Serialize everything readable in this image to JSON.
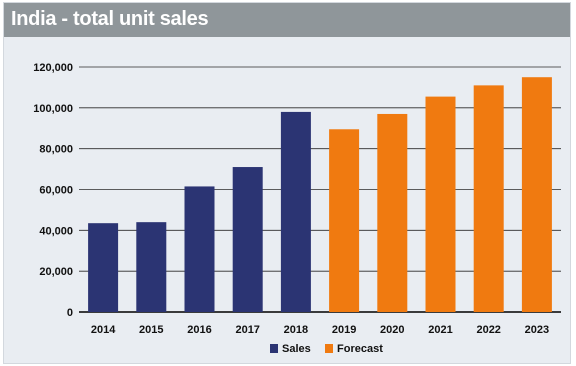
{
  "chart_data": {
    "type": "bar",
    "title": "India - total unit sales",
    "categories": [
      "2014",
      "2015",
      "2016",
      "2017",
      "2018",
      "2019",
      "2020",
      "2021",
      "2022",
      "2023"
    ],
    "series": [
      {
        "name": "Sales",
        "color": "#2b3473",
        "values": [
          43500,
          44000,
          61500,
          71000,
          98000,
          null,
          null,
          null,
          null,
          null
        ]
      },
      {
        "name": "Forecast",
        "color": "#f07a10",
        "values": [
          null,
          null,
          null,
          null,
          null,
          89500,
          97000,
          105500,
          111000,
          115000
        ]
      }
    ],
    "yticks": [
      0,
      20000,
      40000,
      60000,
      80000,
      100000,
      120000
    ],
    "ytick_labels": [
      "0",
      "20,000",
      "40,000",
      "60,000",
      "80,000",
      "100,000",
      "120,000"
    ],
    "ylim": [
      0,
      120000
    ],
    "xlabel": "",
    "ylabel": "",
    "grid": true,
    "legend_position": "bottom-center"
  }
}
